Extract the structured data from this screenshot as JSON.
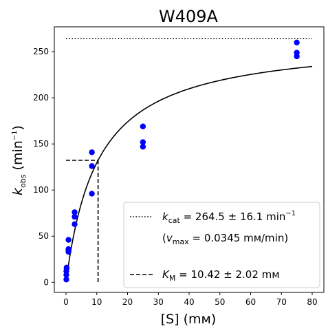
{
  "chart_data": {
    "type": "scatter",
    "title": "W409A",
    "xlabel": {
      "base": "[S] (",
      "unit": "mм",
      "close": ")"
    },
    "ylabel": {
      "base": "k",
      "sub": "obs",
      "unit": " (min",
      "sup": "−1",
      "close": ")"
    },
    "xlim": [
      -3.8,
      83.8
    ],
    "ylim": [
      -11,
      277
    ],
    "xticks": [
      0,
      10,
      20,
      30,
      40,
      50,
      60,
      70,
      80
    ],
    "yticks": [
      0,
      50,
      100,
      150,
      200,
      250
    ],
    "grid": false,
    "legend_placement": "bottom-right",
    "points_color": "#0000ff",
    "series": [
      {
        "kind": "points",
        "x": [
          0.1,
          0.1,
          0.1,
          0.2,
          0.2,
          0.8,
          0.8,
          0.8,
          0.8,
          2.8,
          2.8,
          2.8,
          8.4,
          8.4,
          8.4,
          25,
          25,
          25,
          75,
          75,
          75
        ],
        "y": [
          3,
          8,
          12,
          16,
          15,
          33,
          36,
          35,
          46,
          63,
          71,
          76,
          96,
          126,
          141,
          147,
          152,
          169,
          245,
          249,
          260
        ]
      },
      {
        "kind": "fit",
        "model": "michaelis-menten",
        "kcat": 264.5,
        "KM": 10.42,
        "x_range": [
          0,
          80
        ],
        "color": "#000000"
      },
      {
        "kind": "hline-dotted",
        "y": 264.5,
        "x_range": [
          0,
          80
        ]
      },
      {
        "kind": "km-dashed",
        "KM": 10.42,
        "half_vmax": 132.25
      }
    ],
    "legend": {
      "entry1": {
        "sym": "k",
        "sub": "cat",
        "text": " = 264.5 ± 16.1 min",
        "sup": "−1"
      },
      "entry2": {
        "open": "(",
        "sym": "v",
        "sub": "max",
        "text": " = 0.0345 mм/min)"
      },
      "entry3": {
        "sym": "K",
        "sub": "M",
        "text": " = 10.42 ± 2.02 mм"
      }
    }
  }
}
